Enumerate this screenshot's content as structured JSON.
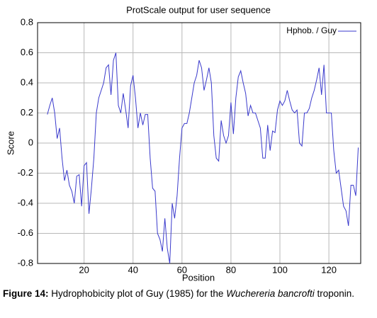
{
  "chart_data": {
    "type": "line",
    "title": "ProtScale output for  user  sequence",
    "xlabel": "Position",
    "ylabel": "Score",
    "x": [
      5,
      6,
      7,
      8,
      9,
      10,
      11,
      12,
      13,
      14,
      15,
      16,
      17,
      18,
      19,
      20,
      21,
      22,
      23,
      24,
      25,
      26,
      27,
      28,
      29,
      30,
      31,
      32,
      33,
      34,
      35,
      36,
      37,
      38,
      39,
      40,
      41,
      42,
      43,
      44,
      45,
      46,
      47,
      48,
      49,
      50,
      51,
      52,
      53,
      54,
      55,
      56,
      57,
      58,
      59,
      60,
      61,
      62,
      63,
      64,
      65,
      66,
      67,
      68,
      69,
      70,
      71,
      72,
      73,
      74,
      75,
      76,
      77,
      78,
      79,
      80,
      81,
      82,
      83,
      84,
      85,
      86,
      87,
      88,
      89,
      90,
      91,
      92,
      93,
      94,
      95,
      96,
      97,
      98,
      99,
      100,
      101,
      102,
      103,
      104,
      105,
      106,
      107,
      108,
      109,
      110,
      111,
      112,
      113,
      114,
      115,
      116,
      117,
      118,
      119,
      120,
      121,
      122,
      123,
      124,
      125,
      126,
      127,
      128,
      129,
      130,
      131,
      132
    ],
    "series": [
      {
        "name": "Hphob. /  Guy",
        "color": "#3a3acc",
        "values": [
          0.19,
          0.25,
          0.3,
          0.2,
          0.03,
          0.1,
          -0.1,
          -0.25,
          -0.18,
          -0.28,
          -0.32,
          -0.4,
          -0.22,
          -0.21,
          -0.42,
          -0.15,
          -0.13,
          -0.47,
          -0.3,
          -0.1,
          0.2,
          0.3,
          0.35,
          0.4,
          0.5,
          0.52,
          0.32,
          0.55,
          0.6,
          0.25,
          0.2,
          0.33,
          0.22,
          0.1,
          0.38,
          0.45,
          0.3,
          0.1,
          0.2,
          0.12,
          0.19,
          0.19,
          -0.1,
          -0.3,
          -0.32,
          -0.6,
          -0.64,
          -0.72,
          -0.5,
          -0.7,
          -0.8,
          -0.4,
          -0.5,
          -0.35,
          -0.1,
          0.1,
          0.13,
          0.13,
          0.2,
          0.3,
          0.4,
          0.45,
          0.55,
          0.5,
          0.35,
          0.42,
          0.5,
          0.4,
          0.05,
          -0.1,
          -0.12,
          0.15,
          0.05,
          0.0,
          0.05,
          0.27,
          0.06,
          0.3,
          0.44,
          0.48,
          0.4,
          0.33,
          0.18,
          0.25,
          0.2,
          0.2,
          0.15,
          0.1,
          -0.1,
          -0.1,
          0.12,
          -0.05,
          0.08,
          0.07,
          0.22,
          0.28,
          0.25,
          0.28,
          0.35,
          0.28,
          0.22,
          0.2,
          0.22,
          0.0,
          -0.02,
          0.2,
          0.2,
          0.23,
          0.3,
          0.35,
          0.42,
          0.5,
          0.32,
          0.52,
          0.2,
          0.2,
          0.2,
          -0.05,
          -0.2,
          -0.18,
          -0.3,
          -0.42,
          -0.45,
          -0.55,
          -0.28,
          -0.28,
          -0.35,
          -0.03
        ]
      }
    ],
    "xlim": [
      1,
      133
    ],
    "xticks": [
      20,
      40,
      60,
      80,
      100,
      120
    ],
    "ylim": [
      -0.8,
      0.8
    ],
    "yticks": [
      -0.8,
      -0.6,
      -0.4,
      -0.2,
      0,
      0.2,
      0.4,
      0.6,
      0.8
    ],
    "grid": true,
    "legend": "top-right"
  },
  "caption": {
    "label": "Figure 14:",
    "text": "Hydrophobicity plot of Guy (1985) for the",
    "species": "Wuchereria bancrofti",
    "end": "troponin."
  }
}
